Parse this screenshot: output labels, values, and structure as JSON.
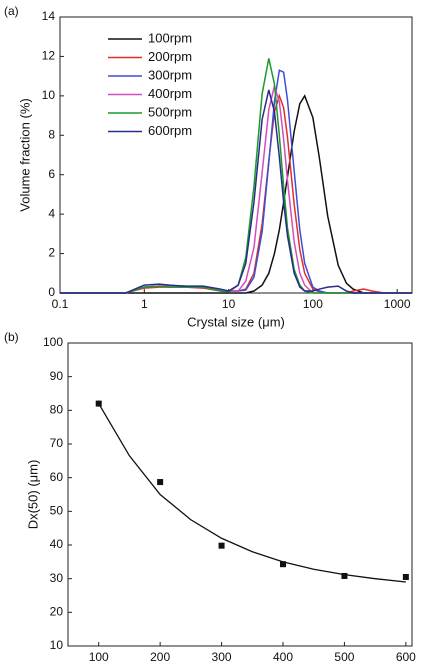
{
  "chart_data": [
    {
      "type": "line",
      "panel_label": "(a)",
      "x_label": "Crystal size (μm)",
      "y_label": "Volume fraction (%)",
      "xscale": "log",
      "xlim": [
        0.1,
        1500
      ],
      "xticks": [
        0.1,
        1,
        10,
        100,
        1000
      ],
      "ylim": [
        0,
        14
      ],
      "yticks": [
        0,
        2,
        4,
        6,
        8,
        10,
        12,
        14
      ],
      "legend": "upper left",
      "x": [
        0.1,
        0.6,
        1,
        1.5,
        2,
        3,
        5,
        8,
        10,
        13,
        16,
        20,
        25,
        30,
        35,
        40,
        45,
        50,
        60,
        70,
        80,
        100,
        120,
        150,
        200,
        250,
        300,
        400,
        500,
        700,
        1500
      ],
      "series": [
        {
          "name": "100rpm",
          "color": "#111111",
          "values": [
            0,
            0,
            0,
            0,
            0,
            0,
            0,
            0,
            0,
            0,
            0,
            0.1,
            0.4,
            1.0,
            2.0,
            3.2,
            4.6,
            5.9,
            8.2,
            9.6,
            10,
            8.9,
            6.8,
            3.9,
            1.4,
            0.5,
            0.2,
            0,
            0,
            0,
            0
          ]
        },
        {
          "name": "200rpm",
          "color": "#e0302a",
          "values": [
            0,
            0,
            0.25,
            0.3,
            0.3,
            0.3,
            0.25,
            0.1,
            0.1,
            0.1,
            0.2,
            1.0,
            3.5,
            6.7,
            9.2,
            10,
            9.4,
            7.9,
            4.5,
            2.2,
            1.0,
            0.2,
            0.05,
            0,
            0,
            0,
            0.1,
            0.2,
            0.1,
            0,
            0
          ]
        },
        {
          "name": "300rpm",
          "color": "#3b4fd6",
          "values": [
            0,
            0,
            0.3,
            0.35,
            0.35,
            0.35,
            0.3,
            0.15,
            0.1,
            0.1,
            0.15,
            0.8,
            3.1,
            6.6,
            9.7,
            11.3,
            11.2,
            9.8,
            6.2,
            3.2,
            1.5,
            0.3,
            0.1,
            0,
            0,
            0,
            0,
            0,
            0,
            0,
            0
          ]
        },
        {
          "name": "400rpm",
          "color": "#d54cc0",
          "values": [
            0,
            0,
            0.3,
            0.35,
            0.35,
            0.35,
            0.3,
            0.15,
            0.1,
            0.1,
            0.6,
            2.3,
            6.1,
            9.3,
            10.5,
            9.7,
            7.8,
            5.7,
            2.6,
            1.0,
            0.4,
            0,
            0,
            0,
            0,
            0,
            0,
            0,
            0,
            0,
            0
          ]
        },
        {
          "name": "500rpm",
          "color": "#1a9a2a",
          "values": [
            0,
            0,
            0.3,
            0.35,
            0.3,
            0.3,
            0.3,
            0.1,
            0.05,
            0.4,
            1.8,
            5.4,
            10.1,
            11.9,
            10.6,
            8.0,
            5.4,
            3.3,
            1.2,
            0.4,
            0.1,
            0,
            0,
            0,
            0,
            0,
            0,
            0,
            0,
            0,
            0
          ]
        },
        {
          "name": "600rpm",
          "color": "#2b2b8c",
          "values": [
            0,
            0,
            0.4,
            0.45,
            0.4,
            0.35,
            0.35,
            0.2,
            0.1,
            0.4,
            1.5,
            4.6,
            8.8,
            10.3,
            9.2,
            6.9,
            4.6,
            2.9,
            1.0,
            0.3,
            0.1,
            0.1,
            0.2,
            0.3,
            0.35,
            0.1,
            0,
            0,
            0,
            0,
            0
          ]
        }
      ]
    },
    {
      "type": "scatter",
      "panel_label": "(b)",
      "x_label": "Agitation rate (rpm)",
      "y_label": "Dx(50) (μm)",
      "xlim": [
        50,
        610
      ],
      "xticks": [
        100,
        200,
        300,
        400,
        500,
        600
      ],
      "ylim": [
        10,
        100
      ],
      "yticks": [
        10,
        20,
        30,
        40,
        50,
        60,
        70,
        80,
        90,
        100
      ],
      "color": "#111111",
      "x": [
        100,
        200,
        300,
        400,
        500,
        600
      ],
      "values": [
        82,
        58.7,
        39.8,
        34.3,
        30.8,
        30.5
      ],
      "fit": {
        "x": [
          100,
          150,
          200,
          250,
          300,
          350,
          400,
          450,
          500,
          550,
          600
        ],
        "values": [
          82,
          66.5,
          55,
          47.5,
          42,
          38,
          35,
          32.8,
          31.2,
          30,
          29
        ]
      }
    }
  ]
}
